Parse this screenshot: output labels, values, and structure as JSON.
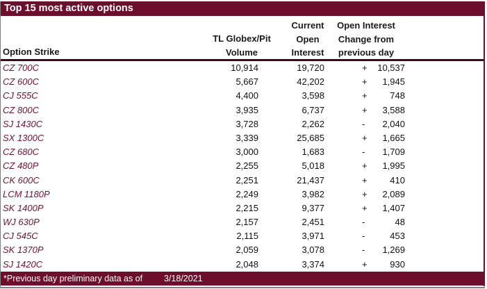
{
  "title": "Top 15 most active options",
  "colors": {
    "maroon_band": "#6E0E2D",
    "strike_text": "#72132F",
    "header_rule": "#3D0819",
    "bottom_rule": "#808080"
  },
  "columns": {
    "option_strike": "Option Strike",
    "volume_lines": [
      "TL Globex/Pit",
      "Volume"
    ],
    "open_interest_lines": [
      "Current",
      "Open",
      "Interest"
    ],
    "change_lines": [
      "Open Interest",
      "Change from",
      "previous day"
    ]
  },
  "rows": [
    {
      "option": "CZ 700C",
      "volume": "10,914",
      "open_interest": "19,720",
      "change_sign": "+",
      "change_value": "10,537"
    },
    {
      "option": "CZ 600C",
      "volume": "5,667",
      "open_interest": "42,202",
      "change_sign": "+",
      "change_value": "1,945"
    },
    {
      "option": "CJ 555C",
      "volume": "4,400",
      "open_interest": "3,598",
      "change_sign": "+",
      "change_value": "748"
    },
    {
      "option": "CZ 800C",
      "volume": "3,935",
      "open_interest": "6,737",
      "change_sign": "+",
      "change_value": "3,588"
    },
    {
      "option": "SJ 1430C",
      "volume": "3,728",
      "open_interest": "2,262",
      "change_sign": "-",
      "change_value": "2,040"
    },
    {
      "option": "SX 1300C",
      "volume": "3,339",
      "open_interest": "25,685",
      "change_sign": "+",
      "change_value": "1,665"
    },
    {
      "option": "CZ 680C",
      "volume": "3,000",
      "open_interest": "1,683",
      "change_sign": "-",
      "change_value": "1,709"
    },
    {
      "option": "CZ 480P",
      "volume": "2,255",
      "open_interest": "5,018",
      "change_sign": "+",
      "change_value": "1,995"
    },
    {
      "option": "CK 600C",
      "volume": "2,251",
      "open_interest": "21,437",
      "change_sign": "+",
      "change_value": "410"
    },
    {
      "option": "LCM 1180P",
      "volume": "2,249",
      "open_interest": "3,982",
      "change_sign": "+",
      "change_value": "2,089"
    },
    {
      "option": "SK 1400P",
      "volume": "2,215",
      "open_interest": "9,377",
      "change_sign": "+",
      "change_value": "1,407"
    },
    {
      "option": "WJ 630P",
      "volume": "2,157",
      "open_interest": "2,451",
      "change_sign": "-",
      "change_value": "48"
    },
    {
      "option": "CJ 545C",
      "volume": "2,115",
      "open_interest": "3,971",
      "change_sign": "-",
      "change_value": "453"
    },
    {
      "option": "SK 1370P",
      "volume": "2,059",
      "open_interest": "3,078",
      "change_sign": "-",
      "change_value": "1,269"
    },
    {
      "option": "SJ 1420C",
      "volume": "2,048",
      "open_interest": "3,374",
      "change_sign": "+",
      "change_value": "930"
    }
  ],
  "footer": {
    "note": "*Previous day preliminary data as of",
    "date": "3/18/2021"
  }
}
